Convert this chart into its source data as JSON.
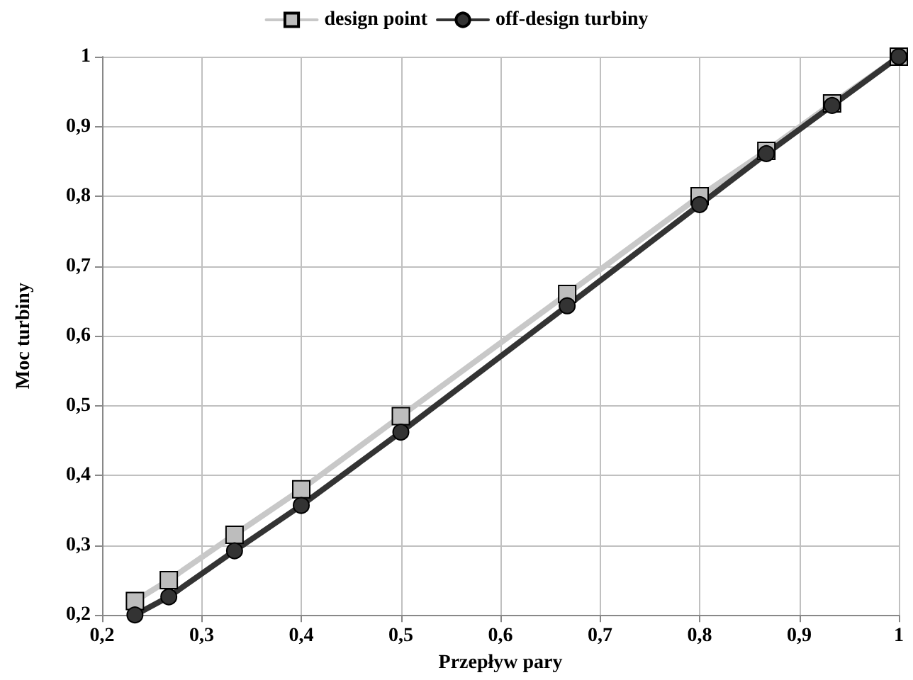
{
  "chart_data": {
    "type": "line",
    "xlabel": "Przepływ pary",
    "ylabel": "Moc turbiny",
    "series": [
      {
        "name": "design point",
        "color": "#c8c8c8",
        "marker": "square",
        "x": [
          0.233,
          0.267,
          0.333,
          0.4,
          0.5,
          0.667,
          0.8,
          0.867,
          0.933,
          1
        ],
        "values": [
          0.22,
          0.25,
          0.315,
          0.38,
          0.485,
          0.66,
          0.8,
          0.865,
          0.933,
          1
        ]
      },
      {
        "name": "off-design turbiny",
        "color": "#333333",
        "marker": "circle",
        "x": [
          0.233,
          0.267,
          0.333,
          0.4,
          0.5,
          0.667,
          0.8,
          0.867,
          0.933,
          1
        ],
        "values": [
          0.2,
          0.226,
          0.292,
          0.357,
          0.462,
          0.643,
          0.788,
          0.861,
          0.93,
          1
        ]
      }
    ],
    "xlim": [
      0.2,
      1
    ],
    "ylim": [
      0.2,
      1
    ],
    "xticks": [
      {
        "value": 0.2,
        "label": "0,2"
      },
      {
        "value": 0.3,
        "label": "0,3"
      },
      {
        "value": 0.4,
        "label": "0,4"
      },
      {
        "value": 0.5,
        "label": "0,5"
      },
      {
        "value": 0.6,
        "label": "0,6"
      },
      {
        "value": 0.7,
        "label": "0,7"
      },
      {
        "value": 0.8,
        "label": "0,8"
      },
      {
        "value": 0.9,
        "label": "0,9"
      },
      1
    ],
    "yticks": [
      {
        "value": 0.2,
        "label": "0,2"
      },
      {
        "value": 0.3,
        "label": "0,3"
      },
      {
        "value": 0.4,
        "label": "0,4"
      },
      {
        "value": 0.5,
        "label": "0,5"
      },
      {
        "value": 0.6,
        "label": "0,6"
      },
      {
        "value": 0.7,
        "label": "0,7"
      },
      {
        "value": 0.8,
        "label": "0,8"
      },
      {
        "value": 0.9,
        "label": "0,9"
      },
      1
    ],
    "grid": true,
    "legend": "top",
    "line_style": "solid"
  }
}
